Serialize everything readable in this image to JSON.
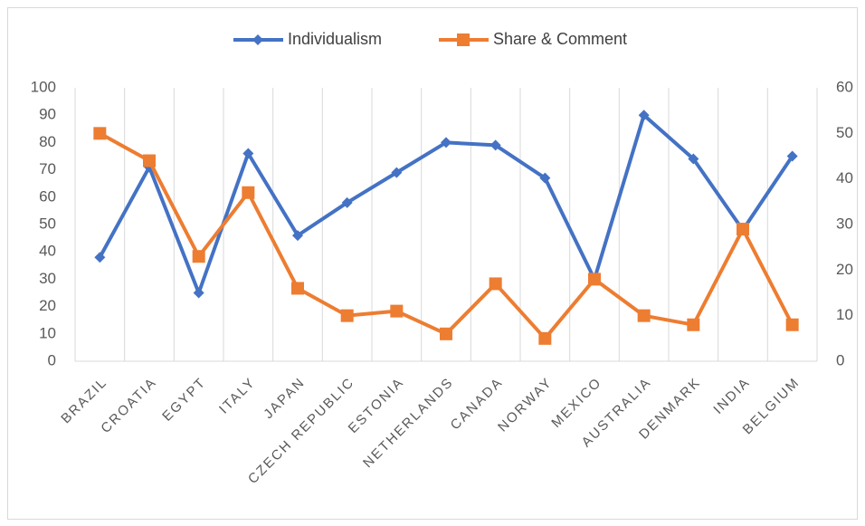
{
  "chart_data": {
    "type": "line",
    "categories": [
      "BRAZIL",
      "CROATIA",
      "EGYPT",
      "ITALY",
      "JAPAN",
      "CZECH REPUBLIC",
      "ESTONIA",
      "NETHERLANDS",
      "CANADA",
      "NORWAY",
      "MEXICO",
      "AUSTRALIA",
      "DENMARK",
      "INDIA",
      "BELGIUM"
    ],
    "series": [
      {
        "name": "Individualism",
        "color": "#4472c4",
        "marker": "diamond",
        "values": [
          38,
          71,
          25,
          76,
          46,
          58,
          69,
          80,
          79,
          67,
          30,
          90,
          74,
          48,
          75
        ]
      },
      {
        "name": "Share & Comment",
        "color": "#ed7d31",
        "marker": "square",
        "axis": "y2",
        "values": [
          50,
          44,
          23,
          37,
          16,
          10,
          11,
          6,
          17,
          5,
          18,
          10,
          8,
          29,
          8
        ]
      }
    ],
    "ylim": [
      0,
      100
    ],
    "yticks": [
      0,
      10,
      20,
      30,
      40,
      50,
      60,
      70,
      80,
      90,
      100
    ],
    "y2lim": [
      0,
      60
    ],
    "y2ticks": [
      0,
      10,
      20,
      30,
      40,
      50,
      60
    ],
    "legend": "top",
    "grid": "vertical"
  }
}
